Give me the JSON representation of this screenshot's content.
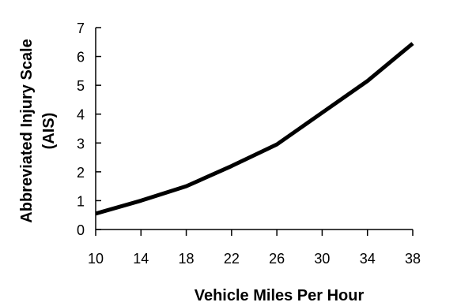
{
  "chart_data": {
    "type": "line",
    "xlabel": "Vehicle Miles Per Hour",
    "ylabel_lines": [
      "Abbreviated Injury Scale",
      "(AIS)"
    ],
    "x_ticks": [
      10,
      14,
      18,
      22,
      26,
      30,
      34,
      38
    ],
    "y_ticks": [
      0,
      1,
      2,
      3,
      4,
      5,
      6,
      7
    ],
    "xlim": [
      10,
      38
    ],
    "ylim": [
      0,
      7
    ],
    "grid": false,
    "series": [
      {
        "color": "#000000",
        "points": [
          {
            "x": 10,
            "y": 0.55
          },
          {
            "x": 14,
            "y": 1.0
          },
          {
            "x": 18,
            "y": 1.5
          },
          {
            "x": 22,
            "y": 2.2
          },
          {
            "x": 26,
            "y": 2.95
          },
          {
            "x": 30,
            "y": 4.05
          },
          {
            "x": 34,
            "y": 5.15
          },
          {
            "x": 38,
            "y": 6.45
          }
        ]
      }
    ]
  }
}
